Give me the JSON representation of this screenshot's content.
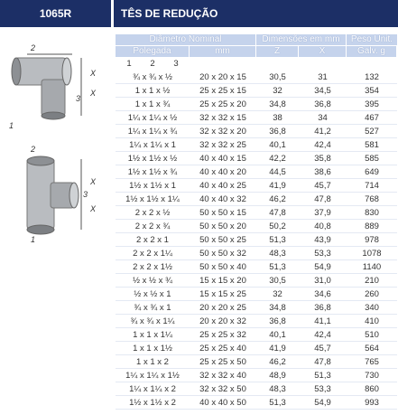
{
  "header": {
    "code": "1065R",
    "title": "TÊS DE REDUÇÃO"
  },
  "figures": [
    {
      "labels": [
        "2",
        "X",
        "X",
        "3",
        "1"
      ]
    },
    {
      "labels": [
        "2",
        "X",
        "X",
        "3",
        "1"
      ]
    }
  ],
  "table": {
    "group_headers": [
      "Diâmetro Nominal",
      "Dimensões em mm",
      "Peso Unit."
    ],
    "sub_headers": [
      "Polegada",
      "mm",
      "Z",
      "X",
      "Galv. g"
    ],
    "index_row": [
      "1",
      "2",
      "3"
    ],
    "rows": [
      [
        "¾ x ¾ x ½",
        "20 x 20 x 15",
        "30,5",
        "31",
        "132"
      ],
      [
        "1 x 1 x ½",
        "25 x 25 x 15",
        "32",
        "34,5",
        "354"
      ],
      [
        "1 x 1 x ¾",
        "25 x 25 x 20",
        "34,8",
        "36,8",
        "395"
      ],
      [
        "1¼ x 1¼ x ½",
        "32 x 32 x 15",
        "38",
        "34",
        "467"
      ],
      [
        "1¼ x 1¼ x ¾",
        "32 x 32 x 20",
        "36,8",
        "41,2",
        "527"
      ],
      [
        "1¼ x 1¼ x 1",
        "32 x 32 x 25",
        "40,1",
        "42,4",
        "581"
      ],
      [
        "1½ x 1½ x ½",
        "40 x 40 x 15",
        "42,2",
        "35,8",
        "585"
      ],
      [
        "1½ x 1½ x ¾",
        "40 x 40 x 20",
        "44,5",
        "38,6",
        "649"
      ],
      [
        "1½ x 1½ x 1",
        "40 x 40 x 25",
        "41,9",
        "45,7",
        "714"
      ],
      [
        "1½ x 1½ x 1¼",
        "40 x 40 x 32",
        "46,2",
        "47,8",
        "768"
      ],
      [
        "2 x 2 x ½",
        "50 x 50 x 15",
        "47,8",
        "37,9",
        "830"
      ],
      [
        "2 x 2 x ¾",
        "50 x 50 x 20",
        "50,2",
        "40,8",
        "889"
      ],
      [
        "2 x 2 x 1",
        "50 x 50 x 25",
        "51,3",
        "43,9",
        "978"
      ],
      [
        "2 x 2 x 1¼",
        "50 x 50 x 32",
        "48,3",
        "53,3",
        "1078"
      ],
      [
        "2 x 2 x 1½",
        "50 x 50 x 40",
        "51,3",
        "54,9",
        "1140"
      ],
      [
        "½ x ½ x ¾",
        "15 x 15 x 20",
        "30,5",
        "31,0",
        "210"
      ],
      [
        "½ x ½ x 1",
        "15 x 15 x 25",
        "32",
        "34,6",
        "260"
      ],
      [
        "¾ x ¾ x 1",
        "20 x 20 x 25",
        "34,8",
        "36,8",
        "340"
      ],
      [
        "¾ x ¾ x 1¼",
        "20 x 20 x 32",
        "36,8",
        "41,1",
        "410"
      ],
      [
        "1 x 1 x 1¼",
        "25 x 25 x 32",
        "40,1",
        "42,4",
        "510"
      ],
      [
        "1 x 1 x 1½",
        "25 x 25 x 40",
        "41,9",
        "45,7",
        "564"
      ],
      [
        "1 x 1 x 2",
        "25 x 25 x 50",
        "46,2",
        "47,8",
        "765"
      ],
      [
        "1¼ x 1¼ x 1½",
        "32 x 32 x 40",
        "48,9",
        "51,3",
        "730"
      ],
      [
        "1¼ x 1¼ x 2",
        "32 x 32 x 50",
        "48,3",
        "53,3",
        "860"
      ],
      [
        "1½ x 1½ x 2",
        "40 x 40 x 50",
        "51,3",
        "54,9",
        "993"
      ]
    ]
  }
}
